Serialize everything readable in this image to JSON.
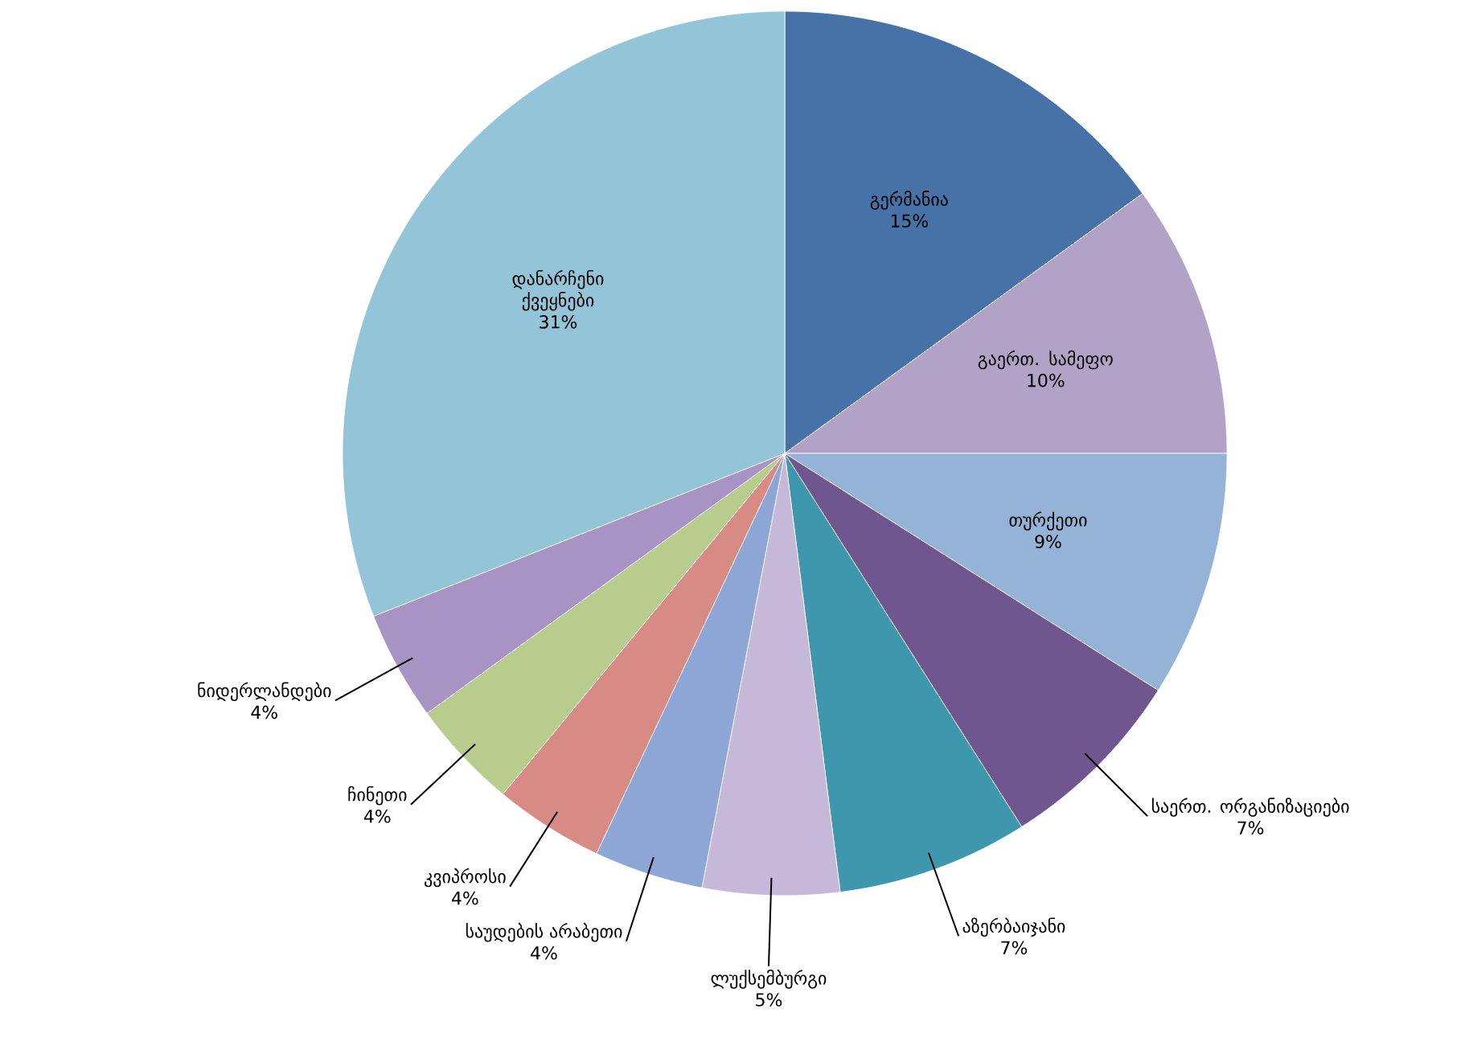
{
  "chart_data": {
    "type": "pie",
    "categories": [
      "გერმანია",
      "გაერთ. სამეფო",
      "თურქეთი",
      "საერთ. ორგანიზაციები",
      "აზერბაიჯანი",
      "ლუქსემბურგი",
      "საუდების არაბეთი",
      "კვიპროსი",
      "ჩინეთი",
      "ნიდერლანდები",
      "დანარჩენი ქვეყნები"
    ],
    "values": [
      15,
      10,
      9,
      7,
      7,
      5,
      4,
      4,
      4,
      4,
      31
    ],
    "value_labels": [
      "15%",
      "10%",
      "9%",
      "7%",
      "7%",
      "5%",
      "4%",
      "4%",
      "4%",
      "4%",
      "31%"
    ],
    "colors": [
      "#4672a8",
      "#b3a2c7",
      "#95b3d7",
      "#70568f",
      "#3f97ad",
      "#c6b8d9",
      "#8ea6d5",
      "#d88a84",
      "#b8cc8e",
      "#a894c4",
      "#93c4d8"
    ]
  }
}
